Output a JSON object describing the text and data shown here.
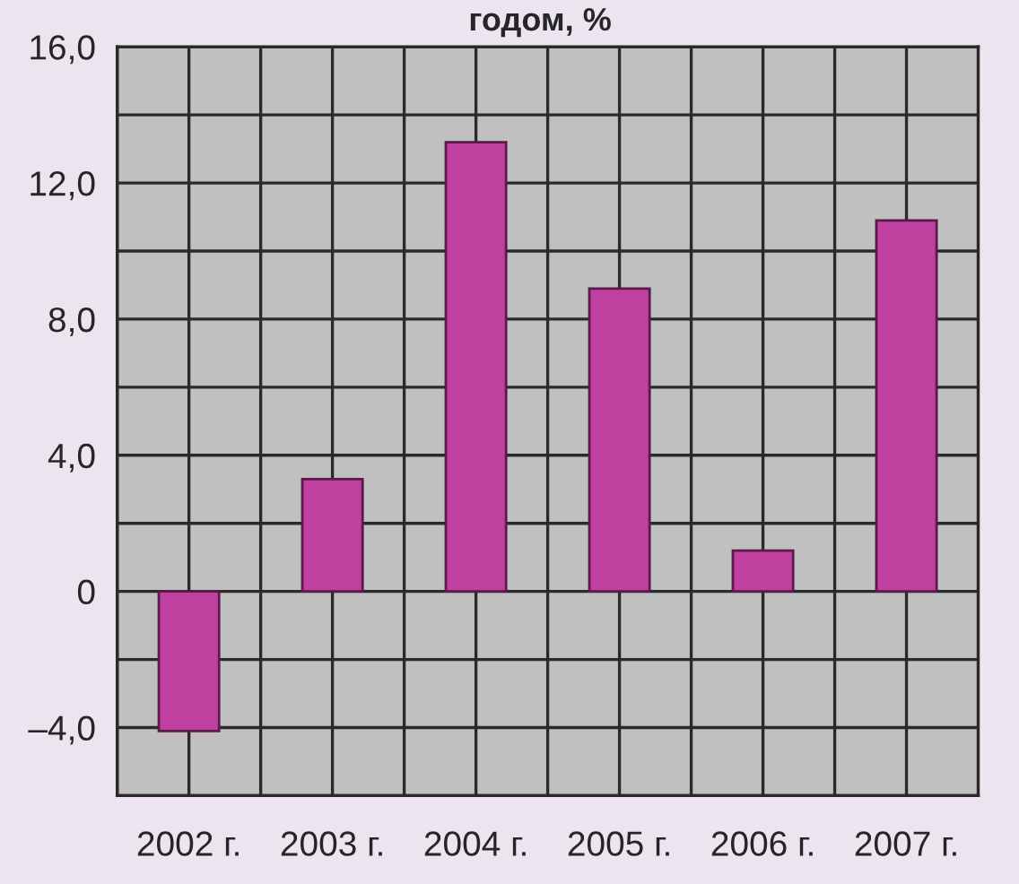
{
  "chart_data": {
    "type": "bar",
    "title": "годом, %",
    "categories": [
      "2002 г.",
      "2003 г.",
      "2004 г.",
      "2005 г.",
      "2006 г.",
      "2007 г."
    ],
    "values": [
      -4.1,
      3.3,
      13.2,
      8.9,
      1.2,
      10.9
    ],
    "color": "#c040a0",
    "ylim": [
      -6,
      16
    ],
    "yticks": [
      {
        "value": -6,
        "label": null
      },
      {
        "value": -4,
        "label": "–4,0"
      },
      {
        "value": -2,
        "label": null
      },
      {
        "value": 0,
        "label": "0"
      },
      {
        "value": 2,
        "label": null
      },
      {
        "value": 4,
        "label": "4,0"
      },
      {
        "value": 6,
        "label": null
      },
      {
        "value": 8,
        "label": "8,0"
      },
      {
        "value": 10,
        "label": null
      },
      {
        "value": 12,
        "label": "12,0"
      },
      {
        "value": 14,
        "label": null
      },
      {
        "value": 16,
        "label": "16,0"
      }
    ],
    "grid": true
  }
}
